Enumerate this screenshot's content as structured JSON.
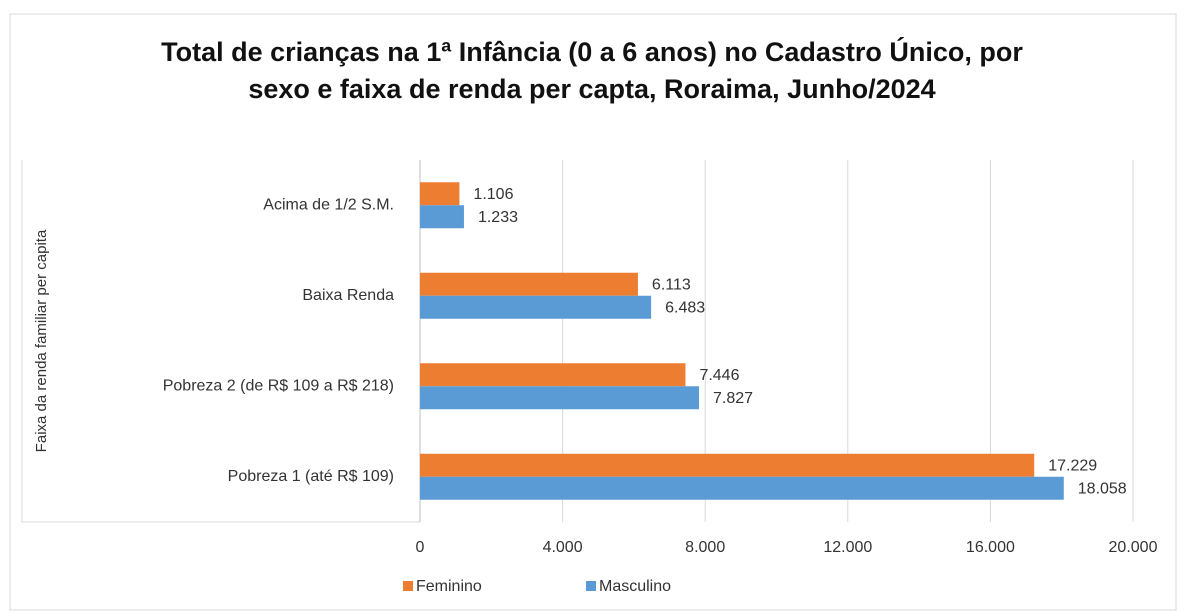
{
  "chart_data": {
    "type": "barh",
    "title": "Total de crianças na 1ª Infância (0 a 6 anos) no Cadastro Único, por sexo e faixa de renda per capta, Roraima, Junho/2024",
    "y_label": "Faixa da renda familiar per capita",
    "categories": [
      "Acima de 1/2 S.M.",
      "Baixa Renda",
      "Pobreza 2 (de R$ 109 a R$ 218)",
      "Pobreza 1 (até R$ 109)"
    ],
    "series": [
      {
        "name": "Feminino",
        "color": "#ed7d31",
        "values": [
          1106,
          6113,
          7446,
          17229
        ],
        "value_labels": [
          "1.106",
          "6.113",
          "7.446",
          "17.229"
        ]
      },
      {
        "name": "Masculino",
        "color": "#5b9bd5",
        "values": [
          1233,
          6483,
          7827,
          18058
        ],
        "value_labels": [
          "1.233",
          "6.483",
          "7.827",
          "18.058"
        ]
      }
    ],
    "xlim": [
      0,
      20000
    ],
    "xticks": [
      0,
      {
        "value": 4000,
        "label": "4.000"
      },
      {
        "value": 8000,
        "label": "8.000"
      },
      {
        "value": 12000,
        "label": "12.000"
      },
      {
        "value": 16000,
        "label": "16.000"
      },
      {
        "value": 20000,
        "label": "20.000"
      }
    ],
    "grid": true,
    "legend": "bottom"
  }
}
